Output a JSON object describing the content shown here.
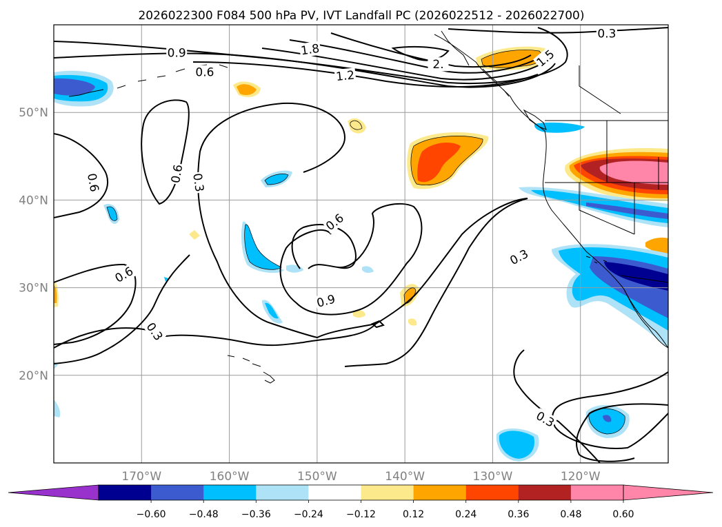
{
  "title": "2026022300 F084 500 hPa PV, IVT Landfall PC (2026022512 - 2026022700)",
  "map": {
    "lon_range": [
      -180,
      -110
    ],
    "lat_range": [
      10,
      60
    ],
    "lat_ticks": [
      {
        "lat": 50,
        "label": "50°N"
      },
      {
        "lat": 40,
        "label": "40°N"
      },
      {
        "lat": 30,
        "label": "30°N"
      },
      {
        "lat": 20,
        "label": "20°N"
      }
    ],
    "lon_ticks": [
      {
        "lon": -170,
        "label": "170°W"
      },
      {
        "lon": -160,
        "label": "160°W"
      },
      {
        "lon": -150,
        "label": "150°W"
      },
      {
        "lon": -140,
        "label": "140°W"
      },
      {
        "lon": -130,
        "label": "130°W"
      },
      {
        "lon": -120,
        "label": "120°W"
      }
    ],
    "gridlines": true
  },
  "contour_labels": [
    {
      "text": "0.3",
      "lon": -127,
      "lat": 33.5,
      "rot": -28
    },
    {
      "text": "0.6",
      "lon": -148,
      "lat": 37.5,
      "rot": -38
    },
    {
      "text": "0.9",
      "lon": -149,
      "lat": 28.5,
      "rot": -15
    },
    {
      "text": "0.6",
      "lon": -172,
      "lat": 31.5,
      "rot": -30
    },
    {
      "text": "0.3",
      "lon": -168.5,
      "lat": 25,
      "rot": 55
    },
    {
      "text": "0.6",
      "lon": -175.5,
      "lat": 42,
      "rot": 80
    },
    {
      "text": "0.6",
      "lon": -166,
      "lat": 43,
      "rot": -80
    },
    {
      "text": "0.3",
      "lon": -163.5,
      "lat": 42,
      "rot": 82
    },
    {
      "text": "0.9",
      "lon": -166,
      "lat": 56.8,
      "rot": 0
    },
    {
      "text": "0.6",
      "lon": -162.8,
      "lat": 54.6,
      "rot": 0
    },
    {
      "text": "1.8",
      "lon": -150.8,
      "lat": 57.2,
      "rot": -8
    },
    {
      "text": "1.2",
      "lon": -146.8,
      "lat": 54.2,
      "rot": -6
    },
    {
      "text": "2.",
      "lon": -136.2,
      "lat": 55.5,
      "rot": 0
    },
    {
      "text": "1.5",
      "lon": -124,
      "lat": 56.2,
      "rot": -40
    },
    {
      "text": "0.3",
      "lon": -117,
      "lat": 59,
      "rot": 0
    },
    {
      "text": "0.3",
      "lon": -124,
      "lat": 15,
      "rot": 30
    }
  ],
  "colorbar": {
    "labels": [
      "−0.60",
      "−0.48",
      "−0.36",
      "−0.24",
      "−0.12",
      "0.12",
      "0.24",
      "0.36",
      "0.48",
      "0.60"
    ],
    "colors": [
      "#000090",
      "#3b5bcf",
      "#00bfff",
      "#aee2f7",
      "#ffffff",
      "#fce98c",
      "#ffa500",
      "#ff4500",
      "#b22222",
      "#ff86a8"
    ],
    "under_color": "#9932cc",
    "over_color": "#ff86a8"
  }
}
